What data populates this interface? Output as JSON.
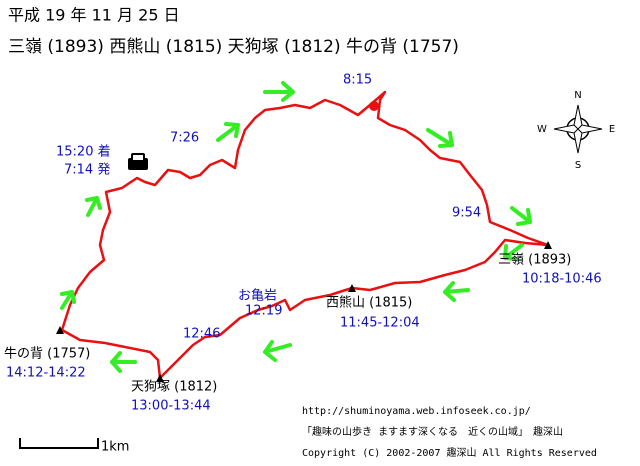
{
  "header": {
    "date": "平成 19 年 11 月 25 日",
    "title": "三嶺 (1893) 西熊山 (1815) 天狗塚 (1812) 牛の背 (1757)"
  },
  "peaks": [
    {
      "name": "三嶺 (1893)",
      "time": "10:18-10:46"
    },
    {
      "name": "西熊山 (1815)",
      "time": "11:45-12:04"
    },
    {
      "name": "天狗塚 (1812)",
      "time": "13:00-13:44"
    },
    {
      "name": "牛の背 (1757)",
      "time": "14:12-14:22"
    }
  ],
  "waypoints": [
    "8:15",
    "7:26",
    "9:54",
    "お亀岩",
    "12:19",
    "12:46",
    "15:20 着",
    "7:14 発"
  ],
  "compass": {
    "n": "N",
    "s": "S",
    "w": "W",
    "e": "E"
  },
  "footer": {
    "url": "http://shuminoyama.web.infoseek.co.jp/",
    "tagline": "「趣味の山歩き ますます深くなる　近くの山域」　趣深山",
    "copyright": "Copyright (C) 2002-2007 趣深山 All Rights Reserved"
  },
  "scale": {
    "label": "1km"
  }
}
